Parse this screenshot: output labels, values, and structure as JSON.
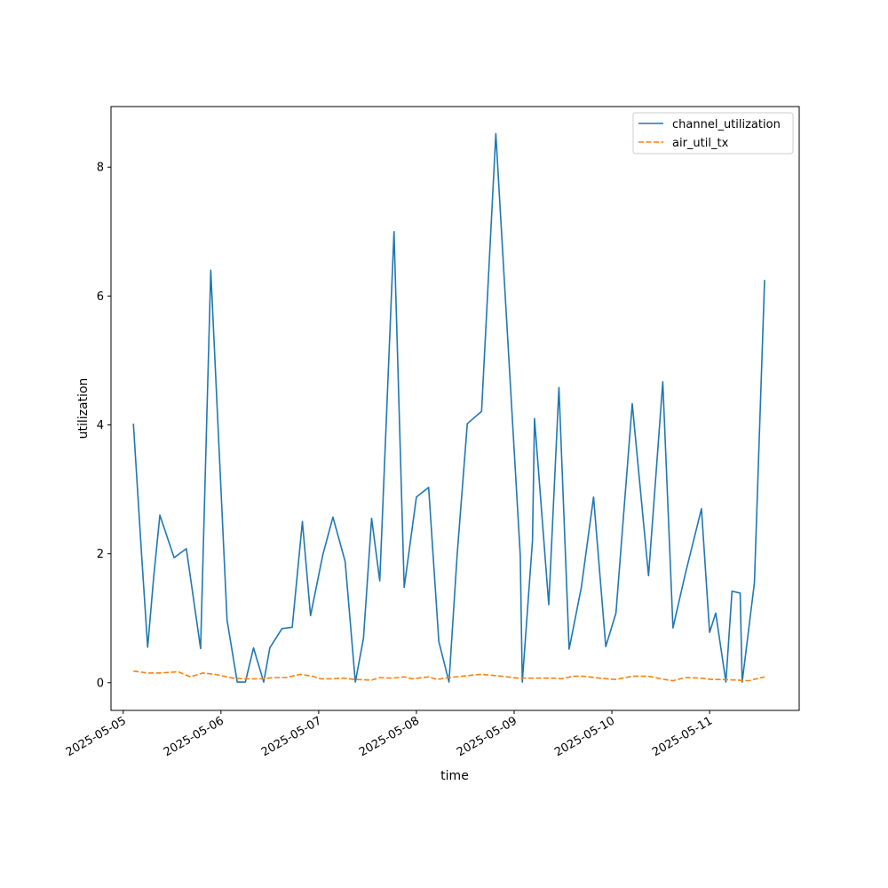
{
  "chart_data": {
    "type": "line",
    "xlabel": "time",
    "ylabel": "utilization",
    "xlim": [
      "2025-05-04T21:00",
      "2025-05-11T22:00"
    ],
    "ylim": [
      -0.43,
      8.94
    ],
    "x_ticks": [
      "2025-05-05",
      "2025-05-06",
      "2025-05-07",
      "2025-05-08",
      "2025-05-09",
      "2025-05-10",
      "2025-05-11"
    ],
    "y_ticks": [
      0,
      2,
      4,
      6,
      8
    ],
    "legend_position": "top-right",
    "series": [
      {
        "name": "channel_utilization",
        "color": "#1f77b4",
        "style": "solid",
        "points": [
          [
            "2025-05-05T02:30",
            4.02
          ],
          [
            "2025-05-05T04:30",
            2.0
          ],
          [
            "2025-05-05T06:00",
            0.55
          ],
          [
            "2025-05-05T07:30",
            1.65
          ],
          [
            "2025-05-05T09:00",
            2.6
          ],
          [
            "2025-05-05T12:30",
            1.94
          ],
          [
            "2025-05-05T15:30",
            2.08
          ],
          [
            "2025-05-05T19:00",
            0.53
          ],
          [
            "2025-05-05T21:30",
            6.4
          ],
          [
            "2025-05-06T01:30",
            0.97
          ],
          [
            "2025-05-06T04:00",
            0.01
          ],
          [
            "2025-05-06T06:00",
            0.01
          ],
          [
            "2025-05-06T08:00",
            0.54
          ],
          [
            "2025-05-06T10:30",
            0.01
          ],
          [
            "2025-05-06T12:00",
            0.54
          ],
          [
            "2025-05-06T15:00",
            0.84
          ],
          [
            "2025-05-06T17:30",
            0.86
          ],
          [
            "2025-05-06T20:00",
            2.5
          ],
          [
            "2025-05-06T22:00",
            1.04
          ],
          [
            "2025-05-07T01:00",
            1.98
          ],
          [
            "2025-05-07T03:30",
            2.57
          ],
          [
            "2025-05-07T06:30",
            1.88
          ],
          [
            "2025-05-07T09:00",
            0.01
          ],
          [
            "2025-05-07T11:00",
            0.69
          ],
          [
            "2025-05-07T13:00",
            2.55
          ],
          [
            "2025-05-07T15:00",
            1.58
          ],
          [
            "2025-05-07T18:30",
            7.0
          ],
          [
            "2025-05-07T21:00",
            1.48
          ],
          [
            "2025-05-08T00:00",
            2.88
          ],
          [
            "2025-05-08T03:00",
            3.03
          ],
          [
            "2025-05-08T05:30",
            0.64
          ],
          [
            "2025-05-08T08:00",
            0.01
          ],
          [
            "2025-05-08T10:00",
            1.98
          ],
          [
            "2025-05-08T12:30",
            4.02
          ],
          [
            "2025-05-08T16:00",
            4.21
          ],
          [
            "2025-05-08T19:30",
            8.52
          ],
          [
            "2025-05-09T01:30",
            1.98
          ],
          [
            "2025-05-09T02:00",
            0.01
          ],
          [
            "2025-05-09T04:30",
            2.2
          ],
          [
            "2025-05-09T05:00",
            4.1
          ],
          [
            "2025-05-09T08:30",
            1.21
          ],
          [
            "2025-05-09T11:00",
            4.58
          ],
          [
            "2025-05-09T13:30",
            0.52
          ],
          [
            "2025-05-09T16:30",
            1.48
          ],
          [
            "2025-05-09T19:30",
            2.88
          ],
          [
            "2025-05-09T22:30",
            0.56
          ],
          [
            "2025-05-10T01:00",
            1.08
          ],
          [
            "2025-05-10T05:00",
            4.33
          ],
          [
            "2025-05-10T09:00",
            1.66
          ],
          [
            "2025-05-10T12:30",
            4.67
          ],
          [
            "2025-05-10T15:00",
            0.85
          ],
          [
            "2025-05-10T18:00",
            1.68
          ],
          [
            "2025-05-10T22:00",
            2.7
          ],
          [
            "2025-05-11T00:00",
            0.78
          ],
          [
            "2025-05-11T01:30",
            1.08
          ],
          [
            "2025-05-11T04:00",
            0.01
          ],
          [
            "2025-05-11T05:30",
            1.42
          ],
          [
            "2025-05-11T07:30",
            1.39
          ],
          [
            "2025-05-11T08:00",
            0.01
          ],
          [
            "2025-05-11T11:00",
            1.55
          ],
          [
            "2025-05-11T13:30",
            6.25
          ]
        ]
      },
      {
        "name": "air_util_tx",
        "color": "#ff7f0e",
        "style": "dashed",
        "points": [
          [
            "2025-05-05T02:30",
            0.18
          ],
          [
            "2025-05-05T06:00",
            0.15
          ],
          [
            "2025-05-05T09:00",
            0.15
          ],
          [
            "2025-05-05T13:30",
            0.17
          ],
          [
            "2025-05-05T16:30",
            0.09
          ],
          [
            "2025-05-05T19:30",
            0.15
          ],
          [
            "2025-05-05T22:30",
            0.13
          ],
          [
            "2025-05-06T03:00",
            0.07
          ],
          [
            "2025-05-06T06:00",
            0.06
          ],
          [
            "2025-05-06T10:00",
            0.06
          ],
          [
            "2025-05-06T13:00",
            0.08
          ],
          [
            "2025-05-06T16:00",
            0.08
          ],
          [
            "2025-05-06T19:30",
            0.13
          ],
          [
            "2025-05-06T22:30",
            0.1
          ],
          [
            "2025-05-07T00:30",
            0.06
          ],
          [
            "2025-05-07T03:00",
            0.06
          ],
          [
            "2025-05-07T06:00",
            0.07
          ],
          [
            "2025-05-07T09:00",
            0.05
          ],
          [
            "2025-05-07T13:00",
            0.04
          ],
          [
            "2025-05-07T15:00",
            0.08
          ],
          [
            "2025-05-07T18:00",
            0.07
          ],
          [
            "2025-05-07T21:00",
            0.09
          ],
          [
            "2025-05-07T23:00",
            0.06
          ],
          [
            "2025-05-08T03:00",
            0.09
          ],
          [
            "2025-05-08T05:00",
            0.05
          ],
          [
            "2025-05-08T08:00",
            0.08
          ],
          [
            "2025-05-08T11:00",
            0.1
          ],
          [
            "2025-05-08T16:00",
            0.13
          ],
          [
            "2025-05-08T21:00",
            0.1
          ],
          [
            "2025-05-09T01:00",
            0.07
          ],
          [
            "2025-05-09T05:00",
            0.07
          ],
          [
            "2025-05-09T10:00",
            0.07
          ],
          [
            "2025-05-09T11:30",
            0.06
          ],
          [
            "2025-05-09T14:30",
            0.1
          ],
          [
            "2025-05-09T17:00",
            0.1
          ],
          [
            "2025-05-09T21:00",
            0.07
          ],
          [
            "2025-05-10T01:00",
            0.05
          ],
          [
            "2025-05-10T05:00",
            0.1
          ],
          [
            "2025-05-10T09:00",
            0.1
          ],
          [
            "2025-05-10T12:00",
            0.06
          ],
          [
            "2025-05-10T15:00",
            0.03
          ],
          [
            "2025-05-10T18:00",
            0.08
          ],
          [
            "2025-05-10T22:00",
            0.07
          ],
          [
            "2025-05-11T00:30",
            0.05
          ],
          [
            "2025-05-11T03:00",
            0.05
          ],
          [
            "2025-05-11T07:00",
            0.04
          ],
          [
            "2025-05-11T09:30",
            0.03
          ],
          [
            "2025-05-11T13:30",
            0.09
          ]
        ]
      }
    ]
  }
}
